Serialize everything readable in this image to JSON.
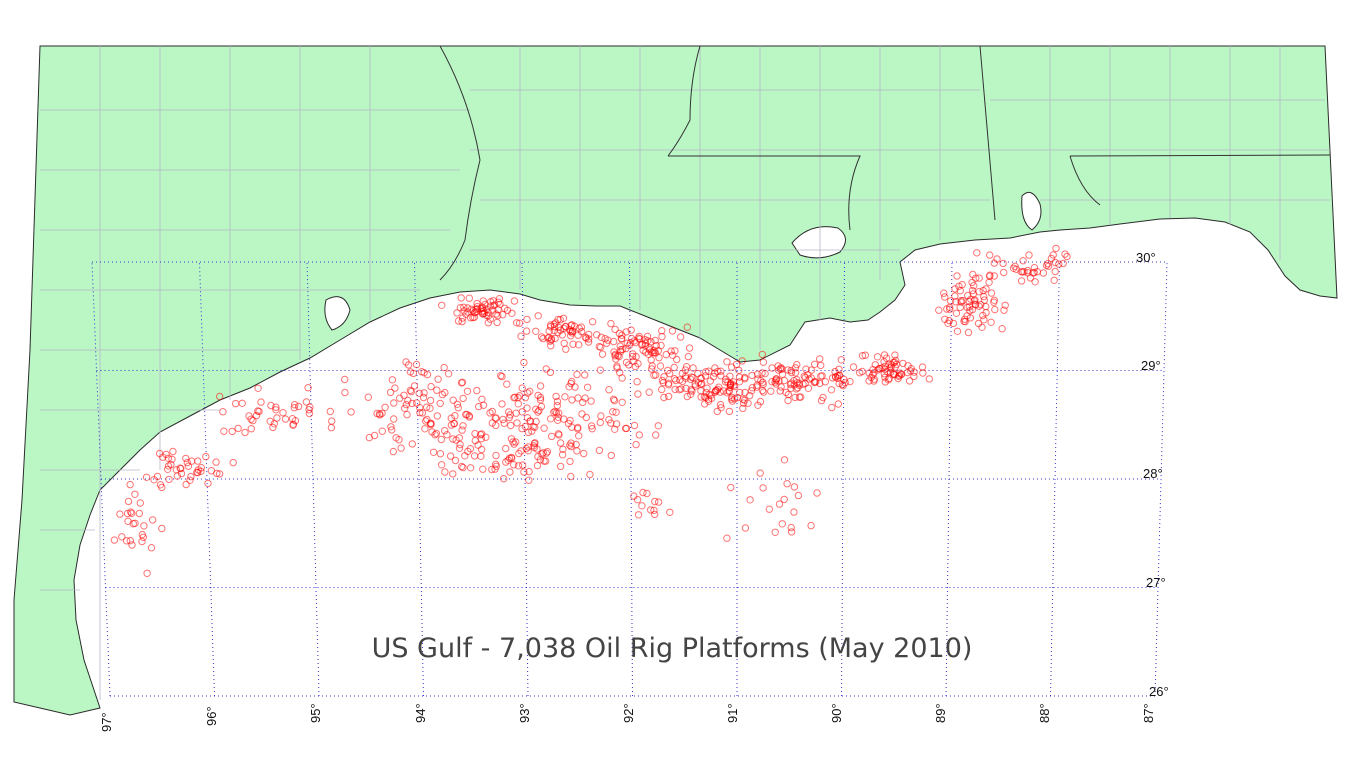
{
  "map": {
    "title": "US Gulf - 7,038 Oil Rig Platforms (May 2010)",
    "rig_count": 7038,
    "land_color": "#bbf7c5",
    "rig_color": "#ff0000",
    "grid_color": "#3333cc",
    "lat_labels": [
      "30°",
      "29°",
      "28°",
      "27°",
      "26°"
    ],
    "lon_labels": [
      "97°",
      "96°",
      "95°",
      "94°",
      "93°",
      "92°",
      "91°",
      "90°",
      "89°",
      "88°",
      "87°"
    ],
    "rig_clusters": [
      {
        "lon": -93.4,
        "lat": 29.55,
        "spread": [
          0.35,
          0.1
        ],
        "n": 60
      },
      {
        "lon": -92.6,
        "lat": 29.35,
        "spread": [
          0.35,
          0.12
        ],
        "n": 60
      },
      {
        "lon": -91.9,
        "lat": 29.2,
        "spread": [
          0.4,
          0.2
        ],
        "n": 90
      },
      {
        "lon": -91.2,
        "lat": 28.85,
        "spread": [
          0.45,
          0.2
        ],
        "n": 120
      },
      {
        "lon": -90.4,
        "lat": 28.9,
        "spread": [
          0.45,
          0.18
        ],
        "n": 90
      },
      {
        "lon": -89.6,
        "lat": 29.0,
        "spread": [
          0.3,
          0.12
        ],
        "n": 60
      },
      {
        "lon": -88.8,
        "lat": 29.6,
        "spread": [
          0.3,
          0.25
        ],
        "n": 70
      },
      {
        "lon": -88.3,
        "lat": 29.95,
        "spread": [
          0.35,
          0.15
        ],
        "n": 40
      },
      {
        "lon": -92.8,
        "lat": 28.6,
        "spread": [
          0.8,
          0.35
        ],
        "n": 140
      },
      {
        "lon": -94.0,
        "lat": 28.7,
        "spread": [
          0.6,
          0.4
        ],
        "n": 80
      },
      {
        "lon": -93.2,
        "lat": 28.2,
        "spread": [
          0.9,
          0.2
        ],
        "n": 70
      },
      {
        "lon": -95.3,
        "lat": 28.6,
        "spread": [
          0.5,
          0.2
        ],
        "n": 40
      },
      {
        "lon": -96.2,
        "lat": 28.1,
        "spread": [
          0.35,
          0.15
        ],
        "n": 40
      },
      {
        "lon": -96.7,
        "lat": 27.5,
        "spread": [
          0.2,
          0.35
        ],
        "n": 25
      },
      {
        "lon": -90.6,
        "lat": 27.8,
        "spread": [
          0.4,
          0.3
        ],
        "n": 20
      },
      {
        "lon": -91.8,
        "lat": 27.8,
        "spread": [
          0.3,
          0.2
        ],
        "n": 12
      }
    ]
  }
}
